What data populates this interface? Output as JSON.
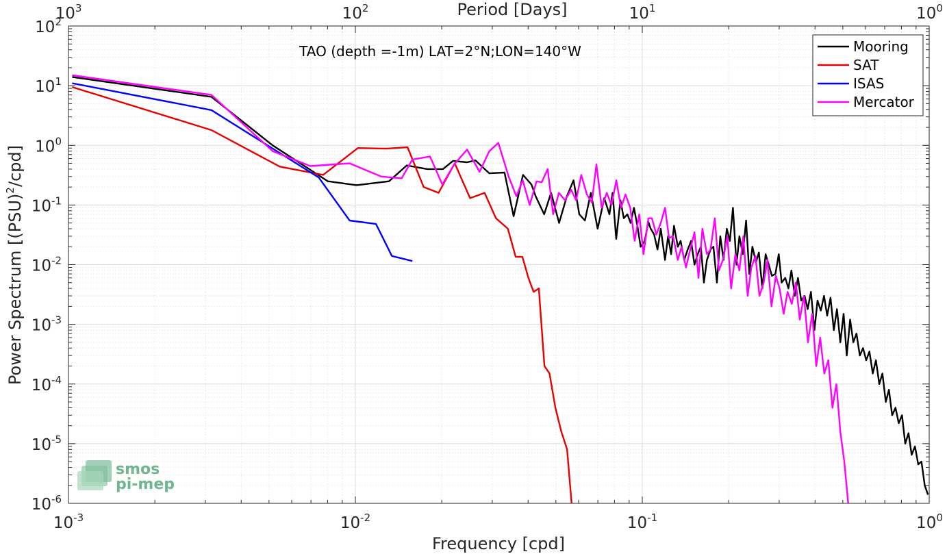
{
  "chart_data": {
    "type": "line",
    "title": "TAO (depth =-1m) LAT=2°N;LON=140°W",
    "xlabel": "Frequency [cpd]",
    "ylabel": "Power Spectrum [(PSU)",
    "ylabel_sup": "2",
    "ylabel_tail": "/cpd]",
    "top_xlabel": "Period [Days]",
    "xscale": "log",
    "yscale": "log",
    "xlim": [
      0.001,
      1
    ],
    "ylim": [
      1e-06,
      100
    ],
    "grid": true,
    "legend_position": "top-right",
    "x_ticks": [
      {
        "value": 0.001,
        "base": "10",
        "exp": "-3"
      },
      {
        "value": 0.01,
        "base": "10",
        "exp": "-2"
      },
      {
        "value": 0.1,
        "base": "10",
        "exp": "-1"
      },
      {
        "value": 1,
        "base": "10",
        "exp": "0"
      }
    ],
    "top_ticks": [
      {
        "value": 0.001,
        "base": "10",
        "exp": "3"
      },
      {
        "value": 0.01,
        "base": "10",
        "exp": "2"
      },
      {
        "value": 0.1,
        "base": "10",
        "exp": "1"
      },
      {
        "value": 1,
        "base": "10",
        "exp": "0"
      }
    ],
    "y_ticks": [
      {
        "value": 100,
        "base": "10",
        "exp": "2"
      },
      {
        "value": 10,
        "base": "10",
        "exp": "1"
      },
      {
        "value": 1,
        "base": "10",
        "exp": "0"
      },
      {
        "value": 0.1,
        "base": "10",
        "exp": "-1"
      },
      {
        "value": 0.01,
        "base": "10",
        "exp": "-2"
      },
      {
        "value": 0.001,
        "base": "10",
        "exp": "-3"
      },
      {
        "value": 0.0001,
        "base": "10",
        "exp": "-4"
      },
      {
        "value": 1e-05,
        "base": "10",
        "exp": "-5"
      },
      {
        "value": 1e-06,
        "base": "10",
        "exp": "-6"
      }
    ],
    "series": [
      {
        "name": "Mooring",
        "color": "#000000",
        "x": [
          0.00103,
          0.00315,
          0.00515,
          0.00802,
          0.0101,
          0.0131,
          0.0151,
          0.0178,
          0.0202,
          0.0219,
          0.0245,
          0.0262,
          0.0293,
          0.0331,
          0.0356,
          0.0384,
          0.0411,
          0.0425,
          0.0455,
          0.0481,
          0.0513,
          0.0546,
          0.0576,
          0.0603,
          0.0631,
          0.0662,
          0.0699,
          0.0737,
          0.0768,
          0.0788,
          0.0811,
          0.0839,
          0.0862,
          0.0887,
          0.0911,
          0.0935,
          0.0961,
          0.0987,
          0.102,
          0.105,
          0.107,
          0.11,
          0.113,
          0.116,
          0.12,
          0.123,
          0.126,
          0.129,
          0.133,
          0.136,
          0.14,
          0.144,
          0.148,
          0.152,
          0.156,
          0.16,
          0.164,
          0.168,
          0.173,
          0.177,
          0.182,
          0.187,
          0.192,
          0.197,
          0.202,
          0.207,
          0.213,
          0.218,
          0.224,
          0.23,
          0.236,
          0.242,
          0.249,
          0.255,
          0.262,
          0.269,
          0.276,
          0.283,
          0.291,
          0.299,
          0.306,
          0.315,
          0.323,
          0.331,
          0.34,
          0.349,
          0.358,
          0.368,
          0.377,
          0.387,
          0.398,
          0.408,
          0.419,
          0.43,
          0.441,
          0.453,
          0.465,
          0.477,
          0.49,
          0.503,
          0.516,
          0.53,
          0.544,
          0.558,
          0.573,
          0.588,
          0.603,
          0.619,
          0.636,
          0.652,
          0.67,
          0.687,
          0.706,
          0.724,
          0.743,
          0.763,
          0.783,
          0.804,
          0.825,
          0.847,
          0.869,
          0.892,
          0.916,
          0.94,
          0.965,
          0.99
        ],
        "y": [
          14,
          6.5,
          1.0,
          0.25,
          0.215,
          0.25,
          0.46,
          0.4,
          0.4,
          0.55,
          0.52,
          0.56,
          0.34,
          0.35,
          0.065,
          0.32,
          0.22,
          0.14,
          0.07,
          0.16,
          0.05,
          0.14,
          0.26,
          0.07,
          0.055,
          0.16,
          0.04,
          0.13,
          0.07,
          0.16,
          0.027,
          0.12,
          0.06,
          0.07,
          0.05,
          0.09,
          0.045,
          0.02,
          0.025,
          0.052,
          0.04,
          0.032,
          0.018,
          0.04,
          0.012,
          0.03,
          0.015,
          0.045,
          0.02,
          0.025,
          0.012,
          0.018,
          0.025,
          0.01,
          0.015,
          0.02,
          0.005,
          0.012,
          0.018,
          0.02,
          0.005,
          0.03,
          0.012,
          0.04,
          0.025,
          0.09,
          0.01,
          0.03,
          0.015,
          0.055,
          0.007,
          0.02,
          0.011,
          0.016,
          0.004,
          0.015,
          0.01,
          0.0065,
          0.007,
          0.015,
          0.005,
          0.006,
          0.004,
          0.008,
          0.003,
          0.006,
          0.0025,
          0.003,
          0.0018,
          0.0035,
          0.0008,
          0.0025,
          0.0017,
          0.003,
          0.0014,
          0.0028,
          0.0008,
          0.0018,
          0.0005,
          0.0015,
          0.0003,
          0.0012,
          0.0005,
          0.0007,
          0.0003,
          0.0004,
          0.00025,
          0.00035,
          0.00015,
          0.00025,
          0.0001,
          0.00015,
          5e-05,
          8e-05,
          3e-05,
          4e-05,
          2.2e-05,
          3e-05,
          1e-05,
          1.5e-05,
          6.5e-06,
          9e-06,
          4.5e-06,
          5e-06,
          2e-06,
          1.4e-06
        ]
      },
      {
        "name": "SAT",
        "color": "#e60000",
        "x": [
          0.00103,
          0.00315,
          0.00545,
          0.00772,
          0.0102,
          0.0128,
          0.0152,
          0.0173,
          0.0195,
          0.0222,
          0.0251,
          0.0282,
          0.0309,
          0.034,
          0.0362,
          0.0382,
          0.0401,
          0.0418,
          0.0436,
          0.0456,
          0.0475,
          0.0498,
          0.0522,
          0.0547,
          0.0568
        ],
        "y": [
          9.5,
          1.8,
          0.44,
          0.32,
          0.9,
          0.88,
          0.93,
          0.2,
          0.16,
          0.5,
          0.13,
          0.16,
          0.06,
          0.04,
          0.0135,
          0.0135,
          0.006,
          0.0035,
          0.004,
          0.0002,
          0.00015,
          4e-05,
          1.6e-05,
          8e-06,
          9e-07
        ]
      },
      {
        "name": "ISAS",
        "color": "#0000ff",
        "x": [
          0.00103,
          0.00315,
          0.00745,
          0.00955,
          0.0118,
          0.0134,
          0.0158
        ],
        "y": [
          11,
          3.9,
          0.29,
          0.055,
          0.048,
          0.014,
          0.0115
        ]
      },
      {
        "name": "Mercator",
        "color": "#ff00ff",
        "x": [
          0.00103,
          0.00315,
          0.00515,
          0.00696,
          0.00955,
          0.0123,
          0.0145,
          0.0158,
          0.0182,
          0.0201,
          0.0221,
          0.0245,
          0.0271,
          0.0293,
          0.0315,
          0.0342,
          0.0364,
          0.0383,
          0.0405,
          0.0428,
          0.0446,
          0.0468,
          0.0489,
          0.0512,
          0.0538,
          0.0565,
          0.0588,
          0.0613,
          0.0641,
          0.0667,
          0.0692,
          0.0722,
          0.0752,
          0.0781,
          0.0812,
          0.0843,
          0.0874,
          0.0908,
          0.0941,
          0.0976,
          0.101,
          0.105,
          0.108,
          0.112,
          0.116,
          0.12,
          0.124,
          0.128,
          0.133,
          0.137,
          0.142,
          0.147,
          0.152,
          0.157,
          0.162,
          0.168,
          0.173,
          0.179,
          0.185,
          0.191,
          0.198,
          0.204,
          0.211,
          0.218,
          0.225,
          0.233,
          0.24,
          0.248,
          0.256,
          0.265,
          0.273,
          0.282,
          0.292,
          0.301,
          0.311,
          0.321,
          0.332,
          0.343,
          0.354,
          0.366,
          0.378,
          0.391,
          0.404,
          0.417,
          0.431,
          0.445,
          0.46,
          0.475,
          0.49,
          0.506,
          0.523
        ],
        "y": [
          15,
          7,
          0.8,
          0.45,
          0.5,
          0.3,
          0.28,
          0.58,
          0.65,
          0.22,
          0.48,
          0.85,
          0.36,
          0.8,
          1.1,
          0.3,
          0.14,
          0.26,
          0.1,
          0.25,
          0.24,
          0.4,
          0.07,
          0.16,
          0.12,
          0.18,
          0.12,
          0.32,
          0.15,
          0.11,
          0.48,
          0.09,
          0.16,
          0.1,
          0.26,
          0.09,
          0.15,
          0.09,
          0.025,
          0.07,
          0.015,
          0.06,
          0.06,
          0.032,
          0.05,
          0.09,
          0.028,
          0.03,
          0.012,
          0.02,
          0.009,
          0.018,
          0.035,
          0.006,
          0.04,
          0.015,
          0.018,
          0.06,
          0.008,
          0.012,
          0.03,
          0.004,
          0.015,
          0.008,
          0.03,
          0.003,
          0.009,
          0.014,
          0.003,
          0.005,
          0.012,
          0.002,
          0.0065,
          0.004,
          0.0015,
          0.0035,
          0.0022,
          0.005,
          0.0012,
          0.003,
          0.0005,
          0.0015,
          0.0002,
          0.0006,
          0.00015,
          0.00025,
          4e-05,
          0.0001,
          1.6e-05,
          5e-06,
          9e-07
        ]
      }
    ]
  },
  "logo": {
    "line1": "smos",
    "line2": "pi-mep"
  }
}
